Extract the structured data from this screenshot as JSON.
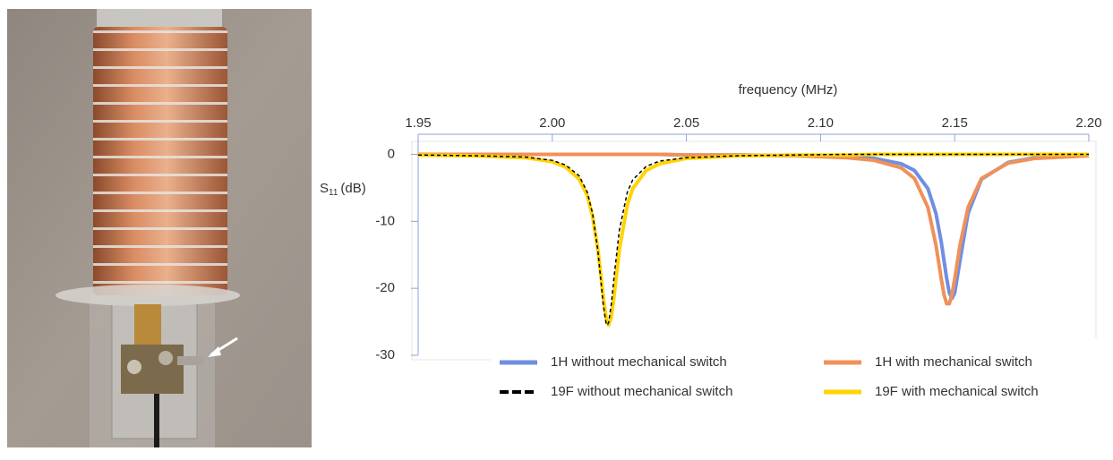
{
  "chart_data": {
    "type": "line",
    "xlabel": "frequency (MHz)",
    "ylabel": "S",
    "ylabel_sub": "11",
    "ylabel_unit": "(dB)",
    "xlim": [
      1.95,
      2.2
    ],
    "ylim": [
      -30,
      3
    ],
    "xticks": [
      1.95,
      {
        "value": 2,
        "label": "2.00"
      },
      2.05,
      {
        "value": 2.1,
        "label": "2.10"
      },
      2.15,
      {
        "value": 2.2,
        "label": "2.20"
      }
    ],
    "yticks": [
      0,
      -10,
      -20,
      -30
    ],
    "x": [
      1.95,
      1.97,
      1.99,
      2.0,
      2.005,
      2.01,
      2.013,
      2.015,
      2.017,
      2.018,
      2.019,
      2.02,
      2.0205,
      2.021,
      2.022,
      2.023,
      2.025,
      2.028,
      2.03,
      2.035,
      2.04,
      2.05,
      2.07,
      2.09,
      2.11,
      2.12,
      2.13,
      2.135,
      2.14,
      2.143,
      2.145,
      2.146,
      2.147,
      2.148,
      2.149,
      2.15,
      2.152,
      2.155,
      2.16,
      2.17,
      2.18,
      2.2
    ],
    "series": [
      {
        "name": "1H without mechanical switch",
        "color": "#6f8fe0",
        "dash": false,
        "values": [
          0,
          0,
          0,
          0,
          0,
          0,
          0,
          0,
          0,
          0,
          0,
          0,
          0,
          0,
          0,
          0,
          0,
          0,
          0,
          0,
          0,
          -0.1,
          -0.1,
          -0.2,
          -0.3,
          -0.6,
          -1.4,
          -2.4,
          -5.1,
          -8.8,
          -13.1,
          -15.8,
          -18.5,
          -20.7,
          -21.5,
          -20.7,
          -15.8,
          -8.8,
          -3.7,
          -1.2,
          -0.5,
          -0.2
        ]
      },
      {
        "name": "1H with mechanical switch",
        "color": "#f0915a",
        "dash": false,
        "values": [
          0,
          0,
          0,
          0,
          0,
          0,
          0,
          0,
          0,
          0,
          0,
          0,
          0,
          0,
          0,
          0,
          0,
          0,
          0,
          0,
          0,
          -0.1,
          -0.1,
          -0.2,
          -0.5,
          -0.9,
          -2.0,
          -3.6,
          -7.9,
          -13.5,
          -18.6,
          -20.9,
          -22.3,
          -22.3,
          -20.9,
          -18.6,
          -13.5,
          -7.9,
          -3.6,
          -1.3,
          -0.6,
          -0.2
        ]
      },
      {
        "name": "19F without mechanical switch",
        "color": "#000000",
        "dash": true,
        "values": [
          -0.1,
          -0.2,
          -0.4,
          -0.9,
          -1.6,
          -3.2,
          -5.6,
          -8.8,
          -14.4,
          -18.4,
          -22.4,
          -25.1,
          -25.5,
          -25.1,
          -22.4,
          -18.4,
          -11.3,
          -5.6,
          -3.8,
          -1.8,
          -1.0,
          -0.5,
          -0.2,
          -0.1,
          0,
          0,
          0,
          0,
          0,
          0,
          0,
          0,
          0,
          0,
          0,
          0,
          0,
          0,
          0,
          0,
          0,
          0
        ]
      },
      {
        "name": "19F with mechanical switch",
        "color": "#ffd400",
        "dash": false,
        "values": [
          -0.1,
          -0.2,
          -0.5,
          -1.1,
          -1.9,
          -3.7,
          -6.1,
          -9.2,
          -14.2,
          -17.7,
          -21.3,
          -24.3,
          -25.2,
          -25.5,
          -24.3,
          -21.3,
          -14.2,
          -7.5,
          -5.1,
          -2.4,
          -1.4,
          -0.6,
          -0.2,
          -0.1,
          -0.1,
          0,
          0,
          0,
          0,
          0,
          0,
          0,
          0,
          0,
          0,
          0,
          0,
          0,
          0,
          0,
          0,
          0
        ]
      }
    ]
  }
}
